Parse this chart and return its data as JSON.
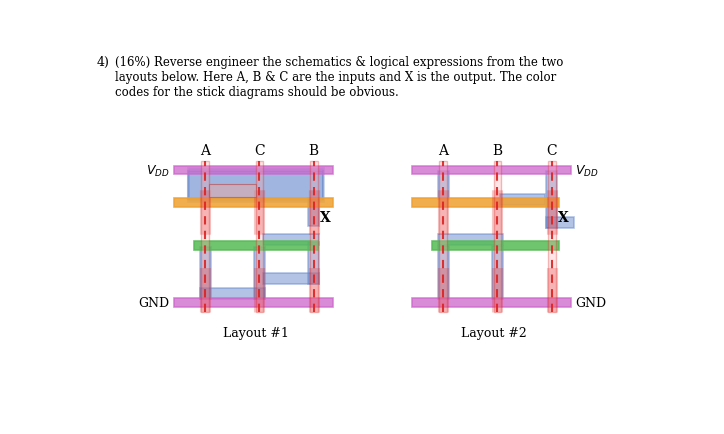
{
  "colors": {
    "purple": "#CC66CC",
    "orange": "#EEA030",
    "green": "#55BB55",
    "blue": "#6688CC",
    "poly_red": "#DD2222",
    "poly_fill": "#EE8888",
    "white": "#FFFFFF"
  },
  "layout1": {
    "ox": 108,
    "oy": 88,
    "col_A": 148,
    "col_C": 218,
    "col_B": 288,
    "row_vdd": 280,
    "row_orange": 238,
    "row_green": 182,
    "row_gnd": 108,
    "label": "Layout #1",
    "col_labels": [
      "A",
      "C",
      "B"
    ]
  },
  "layout2": {
    "ox": 415,
    "oy": 88,
    "col_A": 455,
    "col_B": 525,
    "col_C": 595,
    "row_vdd": 280,
    "row_orange": 238,
    "row_green": 182,
    "row_gnd": 108,
    "label": "Layout #2",
    "col_labels": [
      "A",
      "B",
      "C"
    ]
  }
}
